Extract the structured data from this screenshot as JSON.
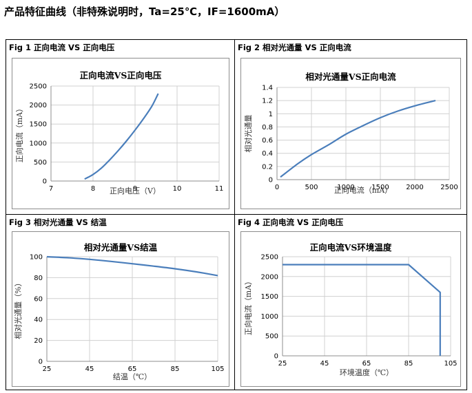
{
  "page": {
    "title": "产品特征曲线（非特殊说明时，Ta=25℃，IF=1600mA）"
  },
  "figures": [
    {
      "label": "Fig 1  正向电流  VS  正向电压"
    },
    {
      "label": "Fig 2  相对光通量  VS  正向电流"
    },
    {
      "label": "Fig 3  相对光通量  VS  结温"
    },
    {
      "label": "Fig 4  正向电流  VS  正向电压"
    }
  ],
  "chart_data": [
    {
      "type": "line",
      "title": "正向电流VS正向电压",
      "xlabel": "正向电压（V）",
      "ylabel": "正向电流（mA）",
      "xlim": [
        7,
        11
      ],
      "ylim": [
        0,
        2500
      ],
      "xticks": [
        7,
        8,
        9,
        10,
        11
      ],
      "yticks": [
        0,
        500,
        1000,
        1500,
        2000,
        2500
      ],
      "grid": true,
      "series": [
        {
          "color": "#4a7ebb",
          "points": [
            [
              7.8,
              50
            ],
            [
              8.0,
              170
            ],
            [
              8.2,
              340
            ],
            [
              8.4,
              560
            ],
            [
              8.6,
              800
            ],
            [
              8.8,
              1060
            ],
            [
              9.0,
              1340
            ],
            [
              9.2,
              1640
            ],
            [
              9.4,
              1970
            ],
            [
              9.55,
              2300
            ]
          ]
        }
      ]
    },
    {
      "type": "line",
      "title": "相对光通量VS正向电流",
      "xlabel": "正向电流（mA）",
      "ylabel": "相对光通量",
      "xlim": [
        0,
        2500
      ],
      "ylim": [
        0,
        1.4
      ],
      "xticks": [
        0,
        500,
        1000,
        1500,
        2000,
        2500
      ],
      "yticks": [
        0,
        0.2,
        0.4,
        0.6,
        0.8,
        1,
        1.2,
        1.4
      ],
      "grid": true,
      "series": [
        {
          "color": "#4a7ebb",
          "points": [
            [
              50,
              0.04
            ],
            [
              300,
              0.24
            ],
            [
              500,
              0.38
            ],
            [
              750,
              0.53
            ],
            [
              1000,
              0.69
            ],
            [
              1250,
              0.82
            ],
            [
              1500,
              0.94
            ],
            [
              1750,
              1.04
            ],
            [
              2000,
              1.12
            ],
            [
              2300,
              1.2
            ]
          ]
        }
      ]
    },
    {
      "type": "line",
      "title": "相对光通量VS结温",
      "xlabel": "结温（℃）",
      "ylabel": "相对光通量（%）",
      "xlim": [
        25,
        105
      ],
      "ylim": [
        0,
        100
      ],
      "xticks": [
        25,
        45,
        65,
        85,
        105
      ],
      "yticks": [
        0,
        20,
        40,
        60,
        80,
        100
      ],
      "grid": true,
      "series": [
        {
          "color": "#4a7ebb",
          "points": [
            [
              25,
              100
            ],
            [
              35,
              99
            ],
            [
              45,
              97.5
            ],
            [
              55,
              95.5
            ],
            [
              65,
              93.3
            ],
            [
              75,
              91
            ],
            [
              85,
              88.5
            ],
            [
              95,
              85.5
            ],
            [
              105,
              82
            ]
          ]
        }
      ]
    },
    {
      "type": "line",
      "title": "正向电流VS环境温度",
      "xlabel": "环境温度（℃）",
      "ylabel": "正向电流（mA）",
      "xlim": [
        25,
        105
      ],
      "ylim": [
        0,
        2500
      ],
      "xticks": [
        25,
        45,
        65,
        85,
        105
      ],
      "yticks": [
        0,
        500,
        1000,
        1500,
        2000,
        2500
      ],
      "grid": true,
      "series": [
        {
          "color": "#4a7ebb",
          "points": [
            [
              25,
              2300
            ],
            [
              85,
              2300
            ],
            [
              100,
              1600
            ],
            [
              100,
              0
            ]
          ]
        }
      ]
    }
  ]
}
